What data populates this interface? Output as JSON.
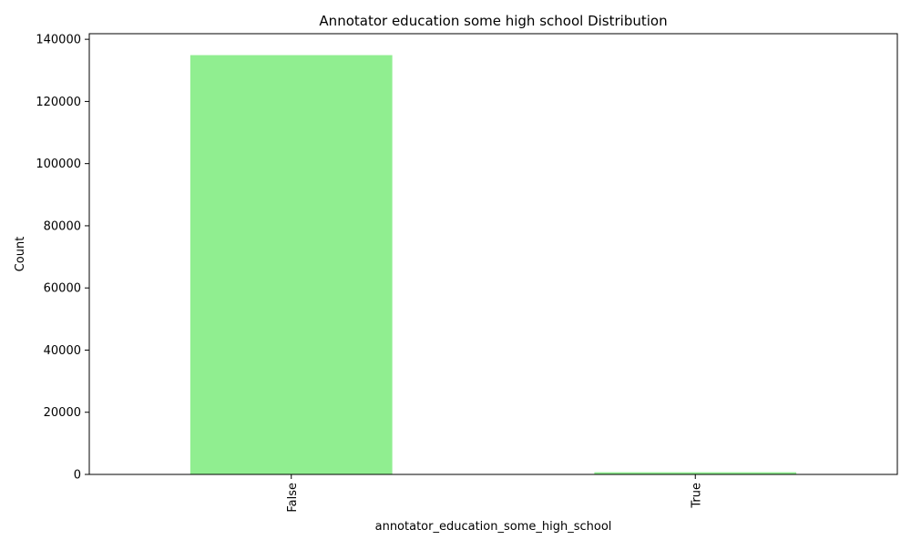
{
  "chart_data": {
    "type": "bar",
    "title": "Annotator education some high school Distribution",
    "xlabel": "annotator_education_some_high_school",
    "ylabel": "Count",
    "categories": [
      "False",
      "True"
    ],
    "values": [
      134900,
      700
    ],
    "ylim": [
      0,
      141800
    ],
    "yticks": [
      0,
      20000,
      40000,
      60000,
      80000,
      100000,
      120000,
      140000
    ],
    "bar_color": "#90ee90",
    "grid": false,
    "legend": "none"
  }
}
